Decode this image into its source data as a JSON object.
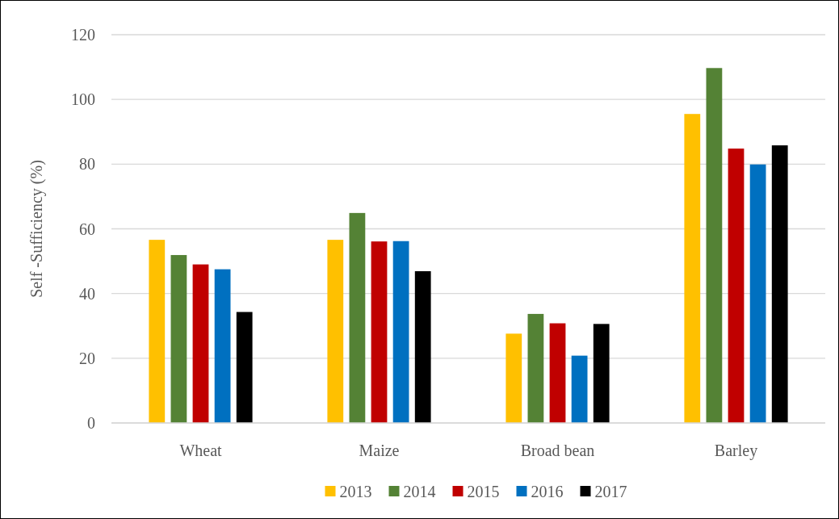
{
  "chart_data": {
    "type": "bar",
    "ylabel": "Self -Sufficiency (%)",
    "categories": [
      "Wheat",
      "Maize",
      "Broad bean",
      "Barley"
    ],
    "series": [
      {
        "name": "2013",
        "color": "#ffc000",
        "values": [
          56.6,
          56.6,
          27.6,
          95.5
        ]
      },
      {
        "name": "2014",
        "color": "#548235",
        "values": [
          51.9,
          64.9,
          33.7,
          109.7
        ]
      },
      {
        "name": "2015",
        "color": "#c00000",
        "values": [
          49.0,
          56.1,
          30.8,
          84.8
        ]
      },
      {
        "name": "2016",
        "color": "#0070c0",
        "values": [
          47.5,
          56.2,
          20.8,
          79.9
        ]
      },
      {
        "name": "2017",
        "color": "#000000",
        "values": [
          34.3,
          46.9,
          30.6,
          85.8
        ]
      }
    ],
    "ylim": [
      0,
      120
    ],
    "yticks": [
      0,
      20,
      40,
      60,
      80,
      100,
      120
    ],
    "grid": "y",
    "legend": "bottom"
  }
}
